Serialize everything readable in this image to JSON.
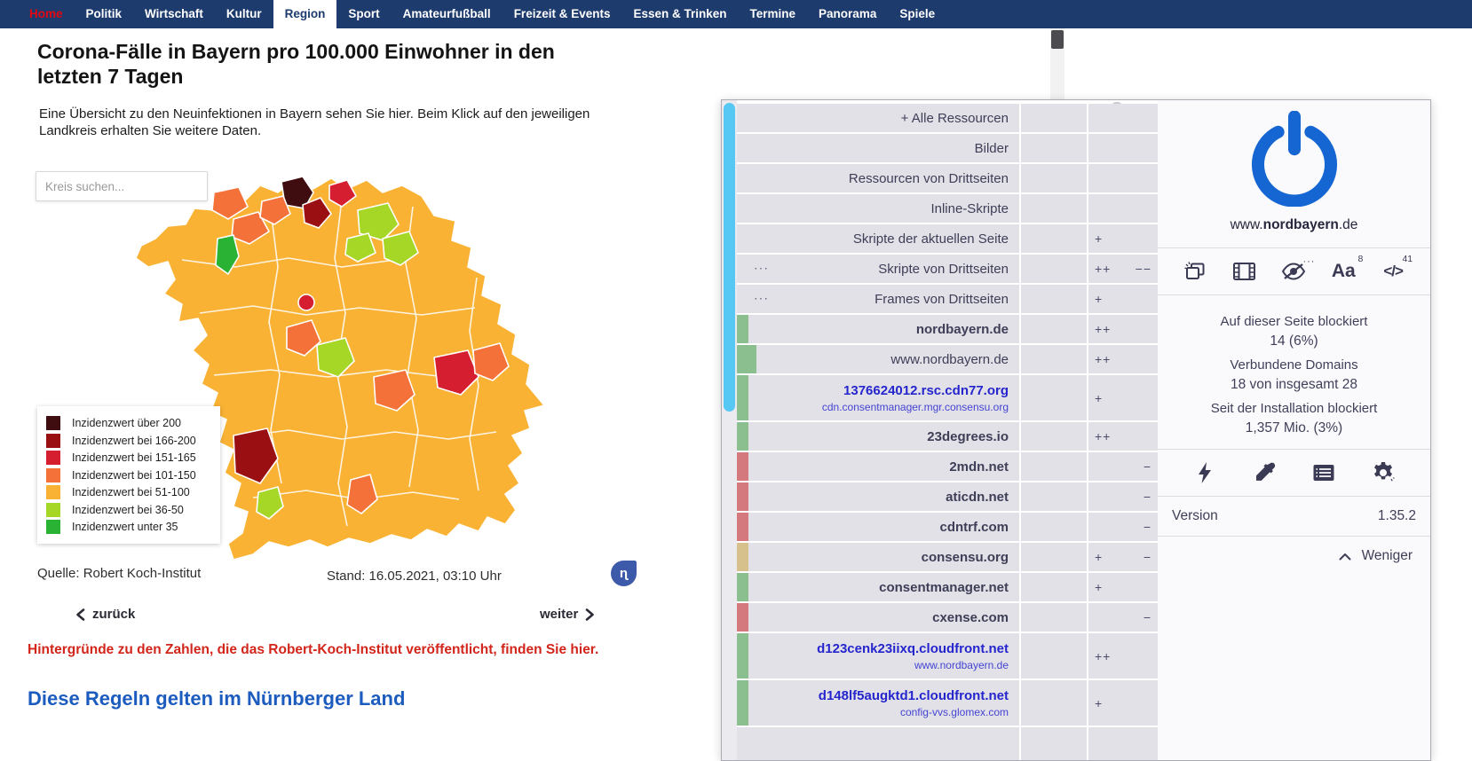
{
  "nav": {
    "items": [
      {
        "label": "Home",
        "style": "home"
      },
      {
        "label": "Politik",
        "style": ""
      },
      {
        "label": "Wirtschaft",
        "style": ""
      },
      {
        "label": "Kultur",
        "style": ""
      },
      {
        "label": "Region",
        "style": "active"
      },
      {
        "label": "Sport",
        "style": ""
      },
      {
        "label": "Amateurfußball",
        "style": ""
      },
      {
        "label": "Freizeit & Events",
        "style": ""
      },
      {
        "label": "Essen & Trinken",
        "style": ""
      },
      {
        "label": "Termine",
        "style": ""
      },
      {
        "label": "Panorama",
        "style": ""
      },
      {
        "label": "Spiele",
        "style": ""
      }
    ]
  },
  "article": {
    "title": "Corona-Fälle in Bayern pro 100.000 Einwohner in den letzten 7 Tagen",
    "intro": "Eine Übersicht zu den Neuinfektionen in Bayern sehen Sie hier. Beim Klick auf den jeweiligen Landkreis erhalten Sie weitere Daten.",
    "search_placeholder": "Kreis suchen...",
    "source": "Quelle: Robert Koch-Institut",
    "updated": "Stand: 16.05.2021, 03:10 Uhr",
    "prev_label": "zurück",
    "next_label": "weiter",
    "info_link": "Hintergründe zu den Zahlen, die das Robert-Koch-Institut veröffentlicht, finden Sie hier.",
    "section_heading": "Diese Regeln gelten im Nürnberger Land",
    "logo_glyph": "ɳ",
    "legend": [
      {
        "color": "#3f0c10",
        "label": "Inzidenzwert über 200"
      },
      {
        "color": "#9a0f12",
        "label": "Inzidenzwert bei 166-200"
      },
      {
        "color": "#d51e2f",
        "label": "Inzidenzwert bei 151-165"
      },
      {
        "color": "#f4713a",
        "label": "Inzidenzwert bei 101-150"
      },
      {
        "color": "#f9b234",
        "label": "Inzidenzwert bei 51-100"
      },
      {
        "color": "#a6d626",
        "label": "Inzidenzwert bei 36-50"
      },
      {
        "color": "#2ab234",
        "label": "Inzidenzwert unter 35"
      }
    ]
  },
  "popup": {
    "rows": [
      {
        "label": "+ Alle Ressourcen",
        "bar": "",
        "plus": "",
        "minus": "",
        "dots": false
      },
      {
        "label": "Bilder",
        "bar": "",
        "plus": "",
        "minus": "",
        "dots": false
      },
      {
        "label": "Ressourcen von Drittseiten",
        "bar": "",
        "plus": "",
        "minus": "",
        "dots": false
      },
      {
        "label": "Inline-Skripte",
        "bar": "",
        "plus": "",
        "minus": "",
        "dots": false
      },
      {
        "label": "Skripte der aktuellen Seite",
        "bar": "",
        "plus": "+",
        "minus": "",
        "dots": false
      },
      {
        "label": "Skripte von Drittseiten",
        "bar": "",
        "plus": "++",
        "minus": "−−",
        "dots": true
      },
      {
        "label": "Frames von Drittseiten",
        "bar": "",
        "plus": "+",
        "minus": "",
        "dots": true
      },
      {
        "label": "nordbayern.de",
        "bold": true,
        "bar": "green",
        "plus": "++",
        "minus": "",
        "dots": false
      },
      {
        "label": "www.nordbayern.de",
        "bar": "green",
        "barWide": true,
        "plus": "++",
        "minus": "",
        "dots": false
      },
      {
        "label": "1376624012.rsc.cdn77.org",
        "link": true,
        "sub": "cdn.consentmanager.mgr.consensu.org",
        "bar": "green",
        "plus": "+",
        "minus": "",
        "dots": false
      },
      {
        "label": "23degrees.io",
        "bold": true,
        "bar": "green",
        "plus": "++",
        "minus": "",
        "dots": false
      },
      {
        "label": "2mdn.net",
        "bold": true,
        "bar": "red",
        "plus": "",
        "minus": "−",
        "dots": false
      },
      {
        "label": "aticdn.net",
        "bold": true,
        "bar": "red",
        "plus": "",
        "minus": "−",
        "dots": false
      },
      {
        "label": "cdntrf.com",
        "bold": true,
        "bar": "red",
        "plus": "",
        "minus": "−",
        "dots": false
      },
      {
        "label": "consensu.org",
        "bold": true,
        "bar": "tan",
        "plus": "+",
        "minus": "−",
        "dots": false
      },
      {
        "label": "consentmanager.net",
        "bold": true,
        "bar": "green",
        "plus": "+",
        "minus": "",
        "dots": false
      },
      {
        "label": "cxense.com",
        "bold": true,
        "bar": "red",
        "plus": "",
        "minus": "−",
        "dots": false
      },
      {
        "label": "d123cenk23iixq.cloudfront.net",
        "link": true,
        "sub": "www.nordbayern.de",
        "bar": "green",
        "plus": "++",
        "minus": "",
        "dots": false
      },
      {
        "label": "d148lf5augktd1.cloudfront.net",
        "link": true,
        "sub": "config-vvs.glomex.com",
        "bar": "green",
        "plus": "+",
        "minus": "",
        "dots": false
      }
    ],
    "site_prefix": "www.",
    "site_domain": "nordbayern",
    "site_suffix": ".de",
    "blocked_on_page_label": "Auf dieser Seite blockiert",
    "blocked_on_page_value": "14 (6%)",
    "domains_label": "Verbundene Domains",
    "domains_value": "18 von insgesamt 28",
    "since_install_label": "Seit der Installation blockiert",
    "since_install_value": "1,357 Mio. (3%)",
    "font_count": "8",
    "script_count": "41",
    "version_label": "Version",
    "version_value": "1.35.2",
    "less_label": "Weniger",
    "accent_blue": "#1566d2"
  }
}
